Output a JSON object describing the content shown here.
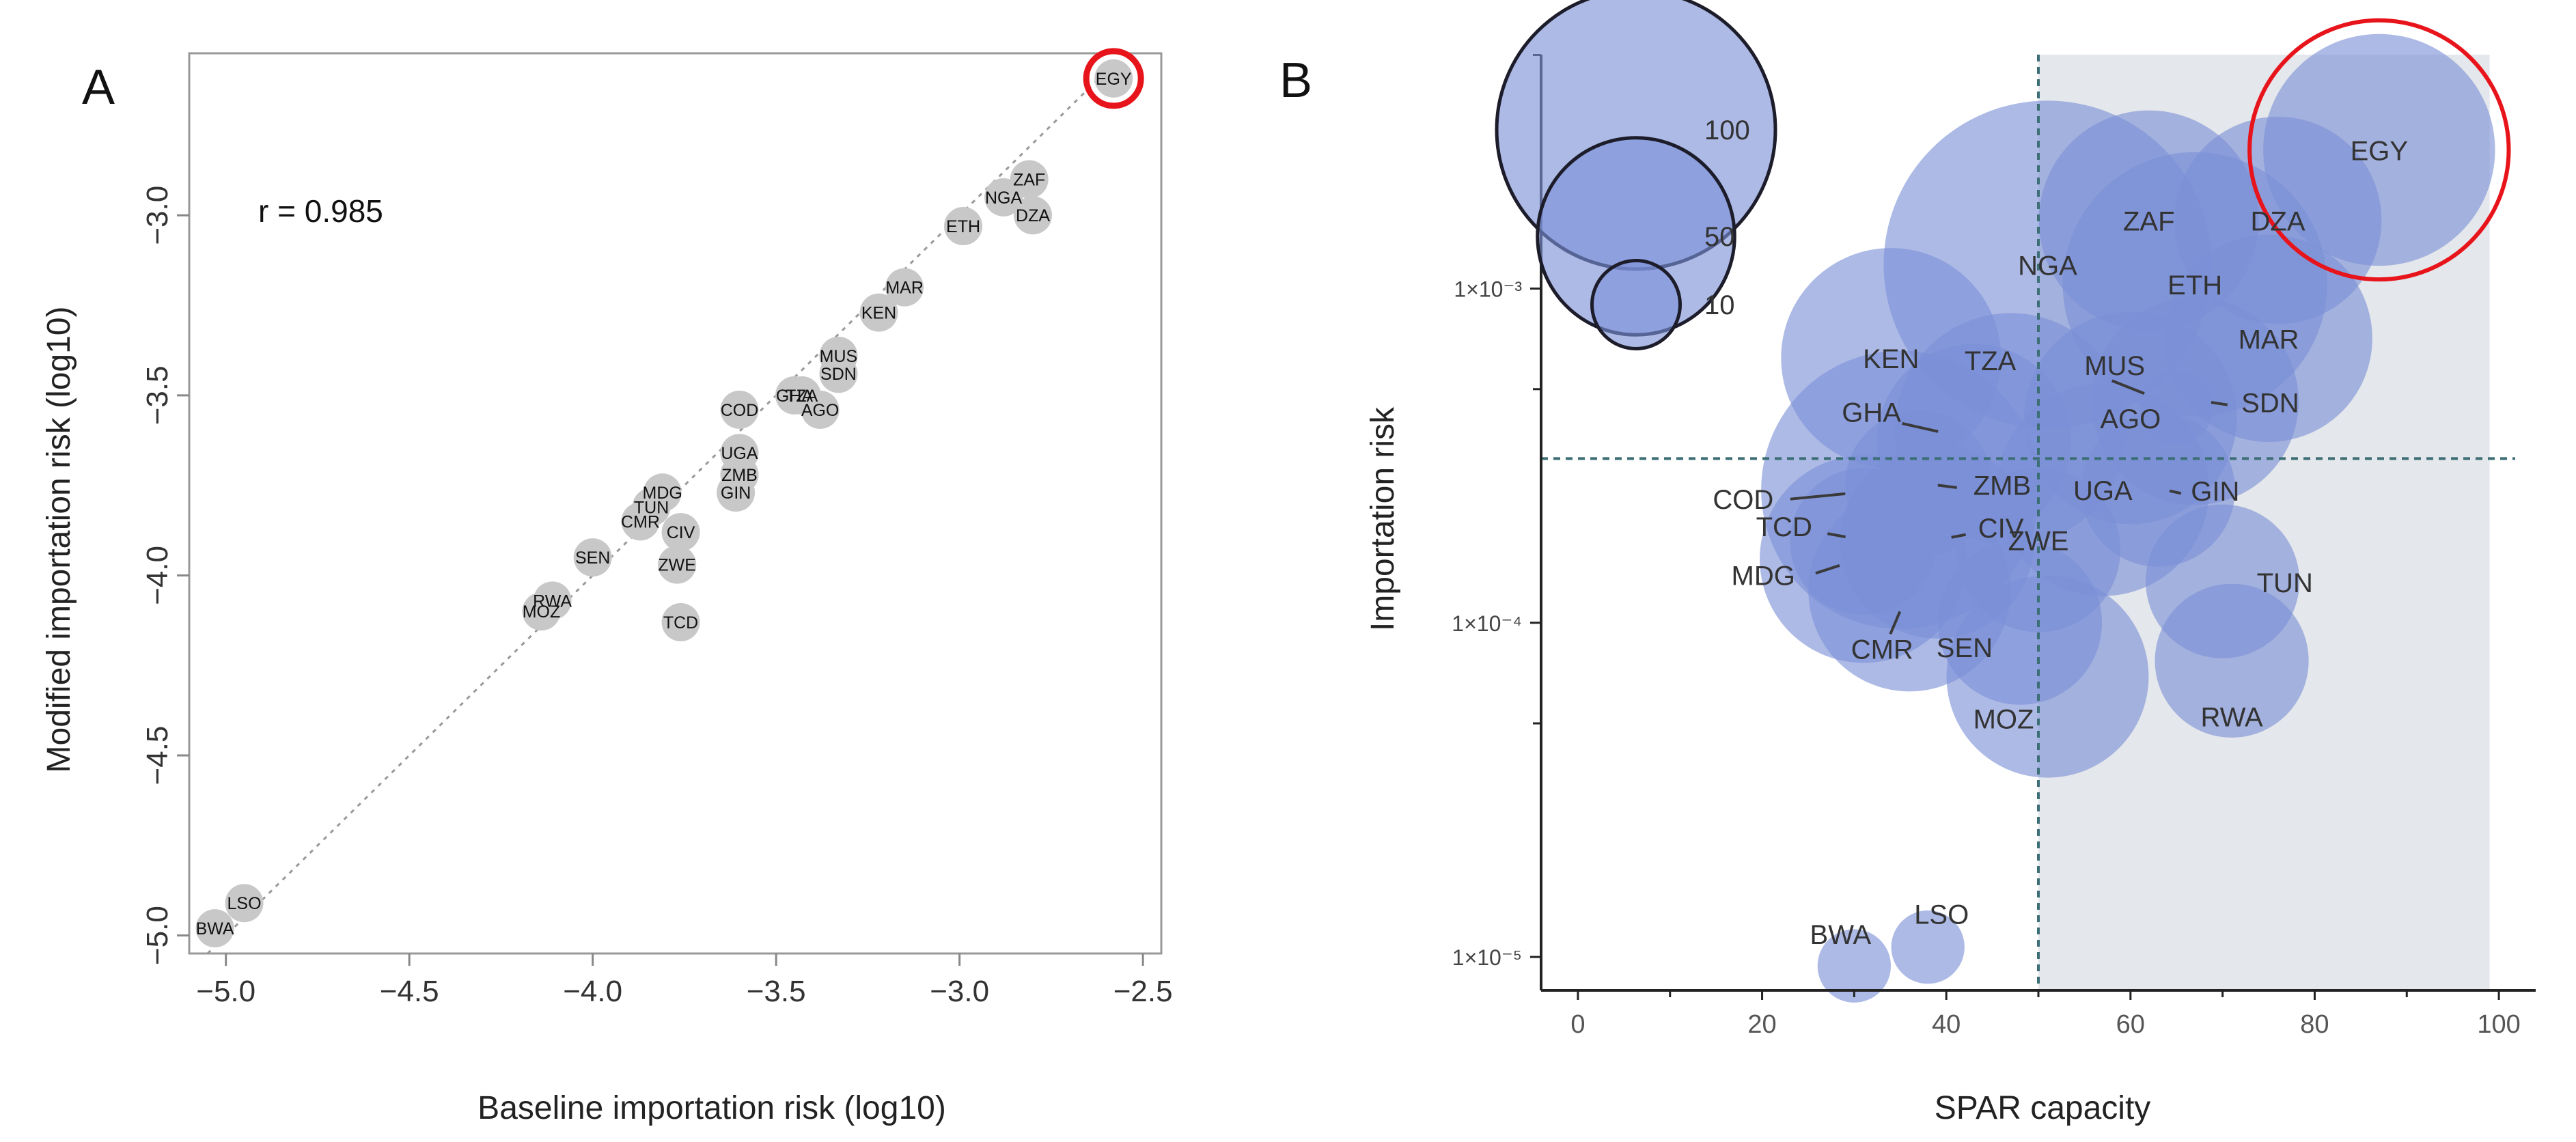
{
  "figure": {
    "panel_a_letter": "A",
    "panel_b_letter": "B"
  },
  "chart_data": [
    {
      "type": "scatter",
      "panel": "A",
      "title": "",
      "xlabel": "Baseline importation risk (log10)",
      "ylabel": "Modified importation risk (log10)",
      "xlim": [
        -5.1,
        -2.45
      ],
      "ylim": [
        -5.05,
        -2.55
      ],
      "xticks": [
        -5.0,
        -4.5,
        -4.0,
        -3.5,
        -3.0,
        -2.5
      ],
      "xtick_labels": [
        "−5.0",
        "−4.5",
        "−4.0",
        "−3.5",
        "−3.0",
        "−2.5"
      ],
      "yticks": [
        -5.0,
        -4.5,
        -4.0,
        -3.5,
        -3.0
      ],
      "ytick_labels": [
        "−5.0",
        "−4.5",
        "−4.0",
        "−3.5",
        "−3.0"
      ],
      "annotation": "r =  0.985",
      "reference_line": "y = x (dotted)",
      "highlight": "EGY",
      "highlight_color": "#e8141b",
      "point_color": "#c8c8c8",
      "points": [
        {
          "label": "EGY",
          "x": -2.58,
          "y": -2.62
        },
        {
          "label": "ZAF",
          "x": -2.81,
          "y": -2.9
        },
        {
          "label": "NGA",
          "x": -2.88,
          "y": -2.95
        },
        {
          "label": "DZA",
          "x": -2.8,
          "y": -3.0
        },
        {
          "label": "ETH",
          "x": -2.99,
          "y": -3.03
        },
        {
          "label": "MAR",
          "x": -3.15,
          "y": -3.2
        },
        {
          "label": "KEN",
          "x": -3.22,
          "y": -3.27
        },
        {
          "label": "MUS",
          "x": -3.33,
          "y": -3.39
        },
        {
          "label": "SDN",
          "x": -3.33,
          "y": -3.44
        },
        {
          "label": "GHA",
          "x": -3.45,
          "y": -3.5
        },
        {
          "label": "TZA",
          "x": -3.43,
          "y": -3.5
        },
        {
          "label": "AGO",
          "x": -3.38,
          "y": -3.54
        },
        {
          "label": "COD",
          "x": -3.6,
          "y": -3.54
        },
        {
          "label": "UGA",
          "x": -3.6,
          "y": -3.66
        },
        {
          "label": "ZMB",
          "x": -3.6,
          "y": -3.72
        },
        {
          "label": "GIN",
          "x": -3.61,
          "y": -3.77
        },
        {
          "label": "MDG",
          "x": -3.81,
          "y": -3.77
        },
        {
          "label": "TUN",
          "x": -3.84,
          "y": -3.81
        },
        {
          "label": "CMR",
          "x": -3.87,
          "y": -3.85
        },
        {
          "label": "CIV",
          "x": -3.76,
          "y": -3.88
        },
        {
          "label": "SEN",
          "x": -4.0,
          "y": -3.95
        },
        {
          "label": "ZWE",
          "x": -3.77,
          "y": -3.97
        },
        {
          "label": "RWA",
          "x": -4.11,
          "y": -4.07
        },
        {
          "label": "MOZ",
          "x": -4.14,
          "y": -4.1
        },
        {
          "label": "TCD",
          "x": -3.76,
          "y": -4.13
        },
        {
          "label": "LSO",
          "x": -4.95,
          "y": -4.91
        },
        {
          "label": "BWA",
          "x": -5.03,
          "y": -4.98
        }
      ]
    },
    {
      "type": "bubble",
      "panel": "B",
      "title": "",
      "xlabel": "SPAR capacity",
      "ylabel": "Importation risk",
      "xlim": [
        -4,
        104
      ],
      "ylim_log10": [
        -5.1,
        -2.3
      ],
      "xticks": [
        0,
        20,
        40,
        60,
        80,
        100
      ],
      "xtick_labels": [
        "0",
        "20",
        "40",
        "60",
        "80",
        "100"
      ],
      "yticks_log10": [
        -5,
        -4,
        -3
      ],
      "ytick_labels": [
        "1×10⁻⁵",
        "1×10⁻⁴",
        "1×10⁻³"
      ],
      "shaded_region_x": [
        50,
        99
      ],
      "threshold_x": 50,
      "threshold_y": 0.00031,
      "bubble_color": "#7b8fd6",
      "shade_color": "#e4e7eb",
      "highlight": "EGY",
      "highlight_color": "#e8141b",
      "size_legend": [
        {
          "value": 100,
          "label": "100"
        },
        {
          "value": 50,
          "label": "50"
        },
        {
          "value": 10,
          "label": "10"
        }
      ],
      "points": [
        {
          "label": "EGY",
          "x": 87,
          "y": 0.0026,
          "size": 50
        },
        {
          "label": "NGA",
          "x": 51,
          "y": 0.00118,
          "size": 100
        },
        {
          "label": "ZAF",
          "x": 62,
          "y": 0.0016,
          "size": 45
        },
        {
          "label": "DZA",
          "x": 76,
          "y": 0.0016,
          "size": 40
        },
        {
          "label": "ETH",
          "x": 67,
          "y": 0.00103,
          "size": 65
        },
        {
          "label": "MAR",
          "x": 75,
          "y": 0.00071,
          "size": 40
        },
        {
          "label": "KEN",
          "x": 34,
          "y": 0.00062,
          "size": 45
        },
        {
          "label": "MUS",
          "x": 65,
          "y": 0.00044,
          "size": 5
        },
        {
          "label": "SDN",
          "x": 67,
          "y": 0.00046,
          "size": 40
        },
        {
          "label": "AGO",
          "x": 60,
          "y": 0.00041,
          "size": 42
        },
        {
          "label": "TZA",
          "x": 47,
          "y": 0.00038,
          "size": 50
        },
        {
          "label": "GHA",
          "x": 43,
          "y": 0.00035,
          "size": 35
        },
        {
          "label": "COD",
          "x": 35,
          "y": 0.00025,
          "size": 72
        },
        {
          "label": "ZMB",
          "x": 37,
          "y": 0.00026,
          "size": 20
        },
        {
          "label": "UGA",
          "x": 57,
          "y": 0.00025,
          "size": 42
        },
        {
          "label": "GIN",
          "x": 63,
          "y": 0.00025,
          "size": 22
        },
        {
          "label": "TCD",
          "x": 31,
          "y": 0.000175,
          "size": 20
        },
        {
          "label": "CIV",
          "x": 39,
          "y": 0.000175,
          "size": 35
        },
        {
          "label": "ZWE",
          "x": 50,
          "y": 0.000165,
          "size": 25
        },
        {
          "label": "MDG",
          "x": 31,
          "y": 0.000155,
          "size": 40
        },
        {
          "label": "CMR",
          "x": 36,
          "y": 0.000125,
          "size": 38
        },
        {
          "label": "TUN",
          "x": 70,
          "y": 0.000133,
          "size": 22
        },
        {
          "label": "SEN",
          "x": 48,
          "y": 0.0001,
          "size": 25
        },
        {
          "label": "RWA",
          "x": 71,
          "y": 7.7e-05,
          "size": 22
        },
        {
          "label": "MOZ",
          "x": 51,
          "y": 6.9e-05,
          "size": 38
        },
        {
          "label": "LSO",
          "x": 38,
          "y": 1.07e-05,
          "size": 5
        },
        {
          "label": "BWA",
          "x": 30,
          "y": 9.4e-06,
          "size": 5
        }
      ]
    }
  ]
}
